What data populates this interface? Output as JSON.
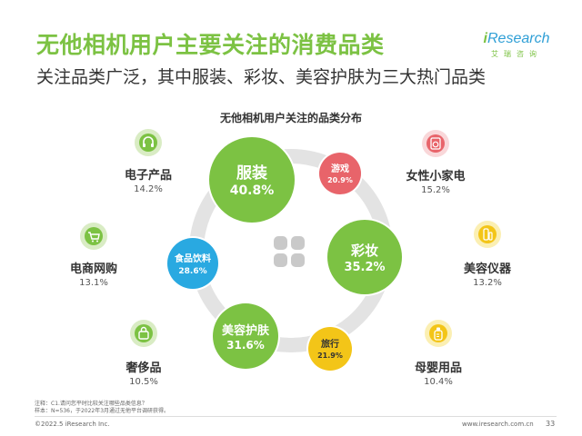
{
  "header": {
    "title": "无他相机用户主要关注的消费品类",
    "subtitle": "关注品类广泛，其中服装、彩妆、美容护肤为三大热门品类"
  },
  "brand": {
    "name_prefix": "i",
    "name_rest": "Research",
    "cn": "艾瑞咨询"
  },
  "chart_data": {
    "type": "bubble",
    "title": "无他相机用户关注的品类分布",
    "categories": [
      "服装",
      "彩妆",
      "美容护肤",
      "食品饮料",
      "旅行",
      "游戏",
      "电子产品",
      "女性小家电",
      "电商网购",
      "美容仪器",
      "奢侈品",
      "母婴用品"
    ],
    "values": [
      40.8,
      35.2,
      31.6,
      28.6,
      21.9,
      20.9,
      14.2,
      15.2,
      13.1,
      13.2,
      10.5,
      10.4
    ],
    "value_labels": [
      "40.8%",
      "35.2%",
      "31.6%",
      "28.6%",
      "21.9%",
      "20.9%",
      "14.2%",
      "15.2%",
      "13.1%",
      "13.2%",
      "10.5%",
      "10.4%"
    ],
    "colors": {
      "green": "#7cc243",
      "red": "#e8646a",
      "blue": "#29a9e1",
      "yellow": "#f3c518",
      "light_green_bg": "#d9ecc4",
      "light_red_bg": "#f9d7d9",
      "light_yellow_bg": "#fbefb3"
    }
  },
  "bubbles": [
    {
      "name": "服装",
      "pct": "40.8%"
    },
    {
      "name": "彩妆",
      "pct": "35.2%"
    },
    {
      "name": "美容护肤",
      "pct": "31.6%"
    },
    {
      "name": "食品饮料",
      "pct": "28.6%"
    },
    {
      "name": "旅行",
      "pct": "21.9%"
    },
    {
      "name": "游戏",
      "pct": "20.9%"
    }
  ],
  "sides": [
    {
      "name": "电子产品",
      "pct": "14.2%",
      "icon": "headphones-icon"
    },
    {
      "name": "电商网购",
      "pct": "13.1%",
      "icon": "shopping-cart-icon"
    },
    {
      "name": "奢侈品",
      "pct": "10.5%",
      "icon": "handbag-icon"
    },
    {
      "name": "女性小家电",
      "pct": "15.2%",
      "icon": "washing-machine-icon"
    },
    {
      "name": "美容仪器",
      "pct": "13.2%",
      "icon": "beauty-device-icon"
    },
    {
      "name": "母婴用品",
      "pct": "10.4%",
      "icon": "baby-bottle-icon"
    }
  ],
  "footer": {
    "note1": "注释：C1.请问您平时比较关注哪些品类信息？",
    "note2": "样本：N=536，于2022年3月通过无他平台调研获得。",
    "copyright": "©2022.5 iResearch Inc.",
    "url": "www.iresearch.com.cn",
    "page": "33"
  }
}
